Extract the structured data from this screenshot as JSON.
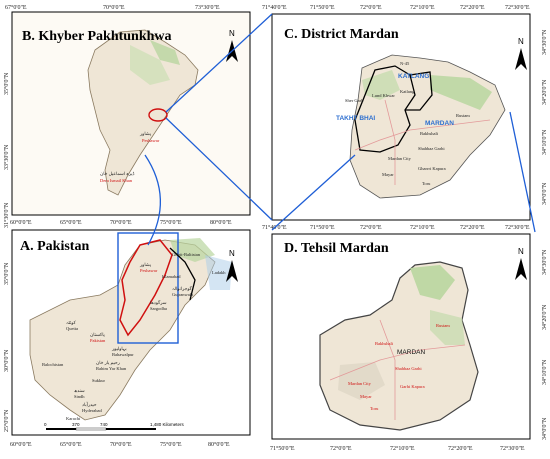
{
  "panels": {
    "kp": {
      "title": "B. Khyber Pakhtunkhwa",
      "top_ticks": [
        "67°0'0\"E",
        "70°0'0\"E",
        "73°30'0\"E"
      ],
      "bottom_ticks": [
        "60°0'0\"E",
        "65°0'0\"E",
        "70°0'0\"E",
        "75°0'0\"E",
        "80°0'0\"E"
      ],
      "left_ticks": [
        "35°0'0\"N",
        "33°30'0\"N",
        "31°30'0\"N"
      ],
      "places": {
        "peshawar_urdu": "پشاور",
        "peshawar": "Peshawar",
        "dera_urdu": "ڈیرہ اسماعیل خان",
        "dera": "Dera Ismail Khan"
      }
    },
    "pakistan": {
      "title": "A. Pakistan",
      "left_ticks": [
        "35°0'0\"N",
        "30°0'0\"N",
        "25°0'0\"N"
      ],
      "bottom_ticks": [
        "60°0'0\"E",
        "65°0'0\"E",
        "70°0'0\"E",
        "75°0'0\"E",
        "80°0'0\"E"
      ],
      "places": {
        "gilgit": "Gilgit-Baltistan",
        "ladakh": "Ladakh",
        "peshawar": "Peshawar",
        "islamabad": "Islamabad",
        "quetta": "Quetta",
        "pakistan": "Pakistan",
        "bahawalpur": "Bahawalpur",
        "rahim": "Rahim Yar Khan",
        "balochistan": "Balochistan",
        "sukkur": "Sukkur",
        "sindh": "Sindh",
        "hyderabad": "Hyderabad",
        "karachi": "Karachi",
        "sargodha": "Sargodha",
        "gujranwala": "Gujranwala",
        "pakistan_urdu": "پاکستان",
        "quetta_urdu": "کوئٹہ",
        "bahawalpur_urdu": "بہاولپور",
        "rahim_urdu": "رحیم یار خان",
        "sindh_urdu": "سندھ",
        "hyderabad_urdu": "حیدرآباد",
        "peshawar_urdu": "پشاور",
        "sargodha_urdu": "سرگودھا",
        "gujranwala_urdu": "گوجرانوالہ"
      },
      "scale_labels": [
        "0",
        "370",
        "740",
        "1,480 Kilometers"
      ]
    },
    "district": {
      "title": "C. District Mardan",
      "top_ticks": [
        "71°40'0\"E",
        "71°50'0\"E",
        "72°0'0\"E",
        "72°10'0\"E",
        "72°20'0\"E",
        "72°30'0\"E"
      ],
      "bottom_ticks": [
        "71°40'0\"E",
        "71°50'0\"E",
        "72°0'0\"E",
        "72°10'0\"E",
        "72°20'0\"E",
        "72°30'0\"E"
      ],
      "right_ticks": [
        "34°30'0\"N",
        "34°20'0\"N",
        "34°10'0\"N",
        "34°0'0\"N"
      ],
      "places": {
        "katlang": "KATLANG",
        "takht": "TAKHT BHAI",
        "mardan": "MARDAN",
        "katlang_small": "Katlang",
        "lund": "Lund Khwar",
        "shergarh": "Sher Garh",
        "rustam": "Rustam",
        "shahbaz": "Shahbaz Garhi",
        "mardan_city": "Mardan City",
        "mayar": "Mayar",
        "ghazi": "Gharrri Kapura",
        "toru": "Toru",
        "n45": "N-45",
        "bakhshali": "Bakhshali"
      }
    },
    "tehsil": {
      "title": "D. Tehsil Mardan",
      "bottom_ticks": [
        "71°50'0\"E",
        "72°0'0\"E",
        "72°10'0\"E",
        "72°20'0\"E",
        "72°30'0\"E"
      ],
      "right_ticks": [
        "34°30'0\"N",
        "34°20'0\"N",
        "34°10'0\"N",
        "34°0'0\"N"
      ],
      "places": {
        "mardan": "MARDAN",
        "rustam": "Rustam",
        "bakhshali": "Bakhshali",
        "shahbaz": "Shahbaz Garhi",
        "mardan_city": "Mardan City",
        "garhi": "Garhi Kapura",
        "mayar": "Mayar",
        "toru": "Toru"
      }
    }
  },
  "north_label": "N",
  "colors": {
    "connector": "#1f5fd6",
    "boundary": "#d01010",
    "land": "#efe6d6",
    "green": "#b9d6a0",
    "water": "#a9cbe8"
  }
}
